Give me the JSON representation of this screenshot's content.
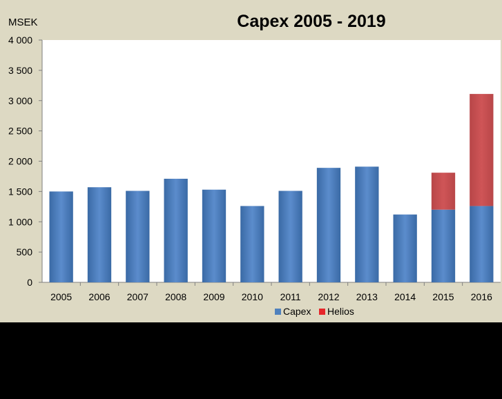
{
  "chart_data": {
    "type": "bar",
    "stacked": true,
    "title": "Capex 2005 - 2019",
    "unit_label": "MSEK",
    "categories": [
      "2005",
      "2006",
      "2007",
      "2008",
      "2009",
      "2010",
      "2011",
      "2012",
      "2013",
      "2014",
      "2015",
      "2016"
    ],
    "series": [
      {
        "name": "Capex",
        "color": "#4f81bd",
        "values": [
          1500,
          1570,
          1510,
          1710,
          1530,
          1260,
          1510,
          1890,
          1910,
          1120,
          1200,
          1260
        ]
      },
      {
        "name": "Helios",
        "color": "#e6262a",
        "values": [
          0,
          0,
          0,
          0,
          0,
          0,
          0,
          0,
          0,
          0,
          610,
          1850
        ]
      }
    ],
    "ylim": [
      0,
      4000
    ],
    "yticks": [
      0,
      500,
      1000,
      1500,
      2000,
      2500,
      3000,
      3500,
      4000
    ],
    "ytick_labels": [
      "0",
      "500",
      "1 000",
      "1 500",
      "2 000",
      "2 500",
      "3 000",
      "3 500",
      "4 000"
    ],
    "grid": false,
    "legend_position": "bottom"
  }
}
